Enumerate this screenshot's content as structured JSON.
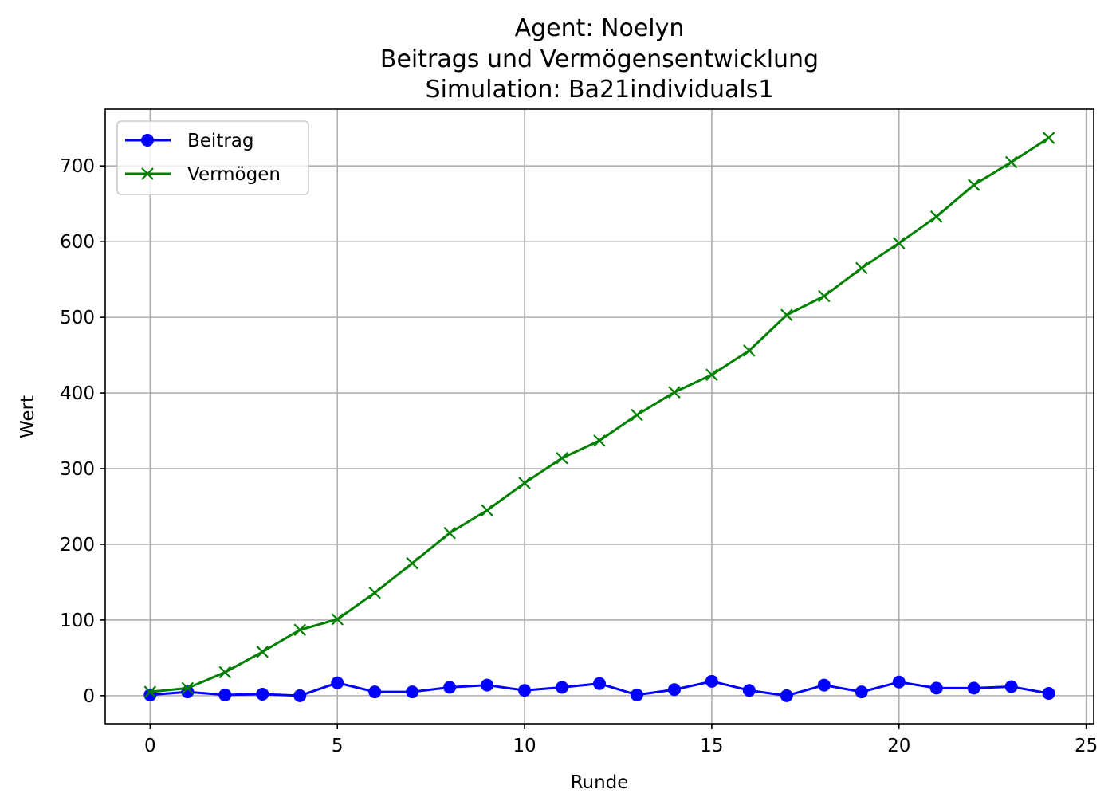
{
  "chart_data": {
    "type": "line",
    "title_lines": [
      "Agent: Noelyn",
      "Beitrags und Vermögensentwicklung",
      "Simulation: Ba21individuals1"
    ],
    "xlabel": "Runde",
    "ylabel": "Wert",
    "xlim": [
      -1.2,
      25.2
    ],
    "ylim": [
      -37,
      775
    ],
    "xticks": [
      0,
      5,
      10,
      15,
      20,
      25
    ],
    "yticks": [
      0,
      100,
      200,
      300,
      400,
      500,
      600,
      700
    ],
    "grid": true,
    "legend_position": "upper-left",
    "x": [
      0,
      1,
      2,
      3,
      4,
      5,
      6,
      7,
      8,
      9,
      10,
      11,
      12,
      13,
      14,
      15,
      16,
      17,
      18,
      19,
      20,
      21,
      22,
      23,
      24
    ],
    "series": [
      {
        "name": "Beitrag",
        "color": "#0000ff",
        "marker": "circle",
        "values": [
          1,
          5,
          1,
          2,
          0,
          17,
          5,
          5,
          11,
          14,
          7,
          11,
          16,
          1,
          8,
          19,
          7,
          0,
          14,
          5,
          18,
          10,
          10,
          12,
          3
        ]
      },
      {
        "name": "Vermögen",
        "color": "#008000",
        "marker": "x",
        "values": [
          5,
          10,
          31,
          58,
          87,
          101,
          136,
          175,
          215,
          245,
          281,
          314,
          337,
          371,
          401,
          424,
          456,
          503,
          528,
          565,
          598,
          633,
          675,
          705,
          737
        ]
      }
    ]
  }
}
